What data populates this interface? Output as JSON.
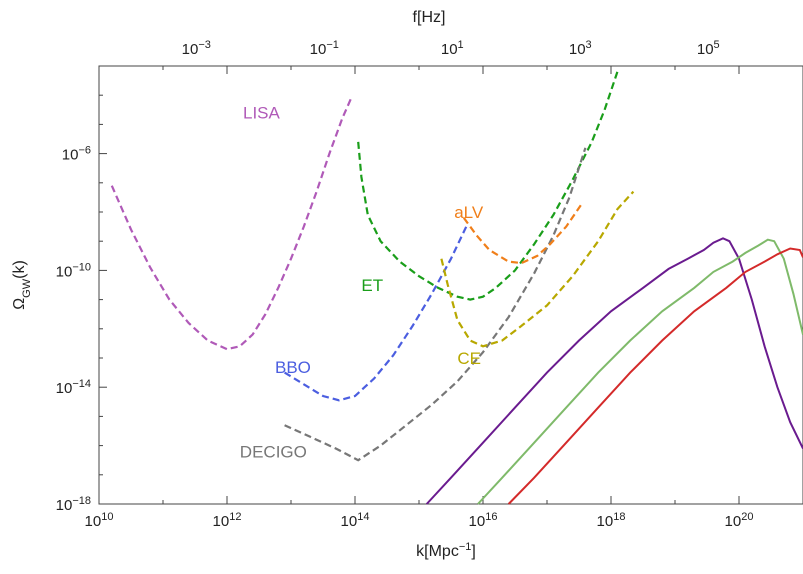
{
  "chart_data": {
    "type": "line",
    "title": "",
    "xlabel": "k[Mpc",
    "xlabel_sup": "−1",
    "xlabel_close": "]",
    "x2label": "f[Hz]",
    "ylabel_base": "Ω",
    "ylabel_sub": "GW",
    "ylabel_tail": "(k)",
    "x_log_range": [
      10,
      21
    ],
    "y_log_range": [
      -18,
      -3
    ],
    "x2_log_range": [
      -4.52,
      6.48
    ],
    "x_ticks": [
      {
        "base": "10",
        "exp": "10",
        "log": 10
      },
      {
        "base": "10",
        "exp": "12",
        "log": 12
      },
      {
        "base": "10",
        "exp": "14",
        "log": 14
      },
      {
        "base": "10",
        "exp": "16",
        "log": 16
      },
      {
        "base": "10",
        "exp": "18",
        "log": 18
      },
      {
        "base": "10",
        "exp": "20",
        "log": 20
      }
    ],
    "x2_ticks": [
      {
        "base": "10",
        "exp": "−3",
        "log": -3
      },
      {
        "base": "10",
        "exp": "−1",
        "log": -1
      },
      {
        "base": "10",
        "exp": "1",
        "log": 1
      },
      {
        "base": "10",
        "exp": "3",
        "log": 3
      },
      {
        "base": "10",
        "exp": "5",
        "log": 5
      }
    ],
    "y_ticks": [
      {
        "base": "10",
        "exp": "−6",
        "log": -6
      },
      {
        "base": "10",
        "exp": "−10",
        "log": -10
      },
      {
        "base": "10",
        "exp": "−14",
        "log": -14
      },
      {
        "base": "10",
        "exp": "−18",
        "log": -18
      }
    ],
    "detectors": [
      {
        "name": "LISA",
        "color": "#b05ab8",
        "label_pos": [
          12.25,
          -4.6
        ],
        "points": [
          [
            10.2,
            -7.1
          ],
          [
            10.5,
            -8.6
          ],
          [
            10.8,
            -9.9
          ],
          [
            11.1,
            -11.0
          ],
          [
            11.4,
            -11.8
          ],
          [
            11.7,
            -12.4
          ],
          [
            12.0,
            -12.7
          ],
          [
            12.2,
            -12.6
          ],
          [
            12.4,
            -12.2
          ],
          [
            12.6,
            -11.5
          ],
          [
            12.8,
            -10.6
          ],
          [
            13.0,
            -9.6
          ],
          [
            13.2,
            -8.5
          ],
          [
            13.4,
            -7.3
          ],
          [
            13.6,
            -6.0
          ],
          [
            13.8,
            -4.8
          ],
          [
            13.95,
            -4.05
          ]
        ]
      },
      {
        "name": "ET",
        "color": "#1a9e1a",
        "label_pos": [
          14.1,
          -10.5
        ],
        "points": [
          [
            14.05,
            -5.6
          ],
          [
            14.1,
            -6.8
          ],
          [
            14.2,
            -8.1
          ],
          [
            14.4,
            -9.0
          ],
          [
            14.7,
            -9.7
          ],
          [
            15.0,
            -10.2
          ],
          [
            15.3,
            -10.6
          ],
          [
            15.6,
            -10.9
          ],
          [
            15.8,
            -11.0
          ],
          [
            16.0,
            -10.9
          ],
          [
            16.2,
            -10.6
          ],
          [
            16.5,
            -10.0
          ],
          [
            16.8,
            -9.1
          ],
          [
            17.1,
            -8.1
          ],
          [
            17.4,
            -6.9
          ],
          [
            17.7,
            -5.6
          ],
          [
            17.9,
            -4.5
          ],
          [
            18.1,
            -3.2
          ]
        ]
      },
      {
        "name": "BBO",
        "color": "#4b5ee0",
        "label_pos": [
          12.75,
          -13.3
        ],
        "points": [
          [
            12.9,
            -13.5
          ],
          [
            13.2,
            -13.9
          ],
          [
            13.5,
            -14.3
          ],
          [
            13.75,
            -14.45
          ],
          [
            14.0,
            -14.3
          ],
          [
            14.3,
            -13.7
          ],
          [
            14.6,
            -12.9
          ],
          [
            14.9,
            -11.9
          ],
          [
            15.2,
            -10.8
          ],
          [
            15.5,
            -9.6
          ],
          [
            15.75,
            -8.45
          ]
        ]
      },
      {
        "name": "DECIGO",
        "color": "#777777",
        "label_pos": [
          12.2,
          -16.2
        ],
        "points": [
          [
            12.9,
            -15.3
          ],
          [
            13.3,
            -15.7
          ],
          [
            13.7,
            -16.1
          ],
          [
            14.05,
            -16.5
          ],
          [
            14.4,
            -16.0
          ],
          [
            14.8,
            -15.3
          ],
          [
            15.2,
            -14.6
          ],
          [
            15.6,
            -13.8
          ],
          [
            16.0,
            -12.8
          ],
          [
            16.4,
            -11.6
          ],
          [
            16.8,
            -10.1
          ],
          [
            17.1,
            -8.8
          ],
          [
            17.35,
            -7.5
          ],
          [
            17.6,
            -5.8
          ]
        ]
      },
      {
        "name": "aLV",
        "color": "#f07f1a",
        "label_pos": [
          15.55,
          -8.0
        ],
        "points": [
          [
            15.7,
            -8.2
          ],
          [
            15.9,
            -8.8
          ],
          [
            16.1,
            -9.3
          ],
          [
            16.4,
            -9.7
          ],
          [
            16.6,
            -9.75
          ],
          [
            16.85,
            -9.5
          ],
          [
            17.05,
            -9.1
          ],
          [
            17.3,
            -8.5
          ],
          [
            17.55,
            -7.7
          ]
        ]
      },
      {
        "name": "CE",
        "color": "#b8a800",
        "label_pos": [
          15.6,
          -13.0
        ],
        "points": [
          [
            15.35,
            -9.6
          ],
          [
            15.45,
            -10.5
          ],
          [
            15.6,
            -11.7
          ],
          [
            15.8,
            -12.4
          ],
          [
            16.0,
            -12.6
          ],
          [
            16.3,
            -12.4
          ],
          [
            16.6,
            -11.9
          ],
          [
            17.0,
            -11.2
          ],
          [
            17.4,
            -10.2
          ],
          [
            17.8,
            -9.0
          ],
          [
            18.1,
            -7.9
          ],
          [
            18.35,
            -7.3
          ]
        ]
      }
    ],
    "series": [
      {
        "name": "",
        "color": "#6a1b8f",
        "points": [
          [
            15.12,
            -18.0
          ],
          [
            15.5,
            -17.1
          ],
          [
            16.0,
            -15.9
          ],
          [
            16.5,
            -14.7
          ],
          [
            17.0,
            -13.5
          ],
          [
            17.5,
            -12.4
          ],
          [
            18.0,
            -11.4
          ],
          [
            18.5,
            -10.6
          ],
          [
            18.9,
            -9.95
          ],
          [
            19.2,
            -9.6
          ],
          [
            19.45,
            -9.3
          ],
          [
            19.6,
            -9.05
          ],
          [
            19.75,
            -8.9
          ],
          [
            19.85,
            -9.0
          ],
          [
            20.0,
            -9.6
          ],
          [
            20.2,
            -11.0
          ],
          [
            20.4,
            -12.6
          ],
          [
            20.6,
            -14.0
          ],
          [
            20.8,
            -15.2
          ],
          [
            21.0,
            -16.1
          ]
        ]
      },
      {
        "name": "",
        "color": "#7fba6a",
        "points": [
          [
            15.92,
            -18.0
          ],
          [
            16.3,
            -17.1
          ],
          [
            16.8,
            -15.9
          ],
          [
            17.3,
            -14.7
          ],
          [
            17.8,
            -13.5
          ],
          [
            18.3,
            -12.4
          ],
          [
            18.8,
            -11.4
          ],
          [
            19.3,
            -10.6
          ],
          [
            19.6,
            -10.05
          ],
          [
            19.9,
            -9.7
          ],
          [
            20.1,
            -9.4
          ],
          [
            20.3,
            -9.15
          ],
          [
            20.45,
            -8.95
          ],
          [
            20.55,
            -9.0
          ],
          [
            20.7,
            -9.6
          ],
          [
            20.85,
            -10.8
          ],
          [
            21.0,
            -12.2
          ]
        ]
      },
      {
        "name": "",
        "color": "#d42a2a",
        "points": [
          [
            16.4,
            -18.0
          ],
          [
            16.8,
            -17.1
          ],
          [
            17.3,
            -15.9
          ],
          [
            17.8,
            -14.7
          ],
          [
            18.3,
            -13.5
          ],
          [
            18.8,
            -12.4
          ],
          [
            19.3,
            -11.4
          ],
          [
            19.8,
            -10.6
          ],
          [
            20.1,
            -10.05
          ],
          [
            20.4,
            -9.7
          ],
          [
            20.6,
            -9.45
          ],
          [
            20.8,
            -9.25
          ],
          [
            20.95,
            -9.3
          ],
          [
            21.0,
            -9.55
          ]
        ]
      }
    ]
  }
}
